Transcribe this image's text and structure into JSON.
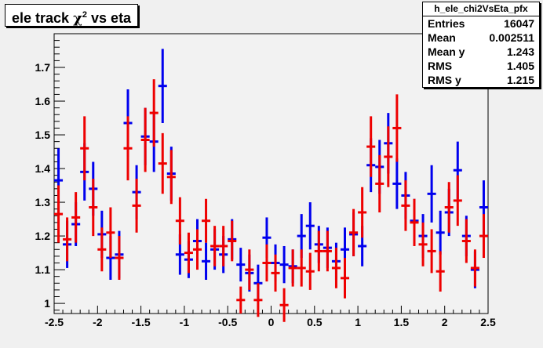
{
  "title": {
    "prefix": "ele track ",
    "chi": "χ",
    "sup": "2",
    "suffix": " vs eta"
  },
  "stats": {
    "name": "h_ele_chi2VsEta_pfx",
    "rows": [
      {
        "label": "Entries",
        "value": "16047"
      },
      {
        "label": "Mean",
        "value": "0.002511"
      },
      {
        "label": "Mean y",
        "value": "1.243"
      },
      {
        "label": "RMS",
        "value": "1.405"
      },
      {
        "label": "RMS y",
        "value": "1.215"
      }
    ]
  },
  "chart_data": {
    "type": "scatter",
    "xlim": [
      -2.5,
      2.5
    ],
    "ylim": [
      0.97,
      1.8
    ],
    "x_ticks": [
      "-2.5",
      "-2",
      "-1.5",
      "-1",
      "-0.5",
      "0",
      "0.5",
      "1",
      "1.5",
      "2",
      "2.5"
    ],
    "y_ticks": [
      "1",
      "1.1",
      "1.2",
      "1.3",
      "1.4",
      "1.5",
      "1.6",
      "1.7"
    ],
    "series": [
      {
        "color": "#0000ee",
        "points": [
          {
            "x": -2.45,
            "y": 1.365,
            "err": 0.095
          },
          {
            "x": -2.35,
            "y": 1.175,
            "err": 0.07
          },
          {
            "x": -2.25,
            "y": 1.235,
            "err": 0.065
          },
          {
            "x": -2.15,
            "y": 1.39,
            "err": 0.085
          },
          {
            "x": -2.05,
            "y": 1.34,
            "err": 0.08
          },
          {
            "x": -1.95,
            "y": 1.205,
            "err": 0.07
          },
          {
            "x": -1.85,
            "y": 1.135,
            "err": 0.065
          },
          {
            "x": -1.75,
            "y": 1.145,
            "err": 0.07
          },
          {
            "x": -1.65,
            "y": 1.535,
            "err": 0.1
          },
          {
            "x": -1.55,
            "y": 1.33,
            "err": 0.08
          },
          {
            "x": -1.45,
            "y": 1.495,
            "err": 0.085
          },
          {
            "x": -1.35,
            "y": 1.48,
            "err": 0.09
          },
          {
            "x": -1.25,
            "y": 1.645,
            "err": 0.11
          },
          {
            "x": -1.15,
            "y": 1.385,
            "err": 0.08
          },
          {
            "x": -1.05,
            "y": 1.145,
            "err": 0.06
          },
          {
            "x": -0.95,
            "y": 1.13,
            "err": 0.055
          },
          {
            "x": -0.85,
            "y": 1.185,
            "err": 0.065
          },
          {
            "x": -0.75,
            "y": 1.125,
            "err": 0.055
          },
          {
            "x": -0.65,
            "y": 1.16,
            "err": 0.06
          },
          {
            "x": -0.55,
            "y": 1.145,
            "err": 0.055
          },
          {
            "x": -0.45,
            "y": 1.19,
            "err": 0.06
          },
          {
            "x": -0.35,
            "y": 1.115,
            "err": 0.05
          },
          {
            "x": -0.25,
            "y": 1.09,
            "err": 0.055
          },
          {
            "x": -0.15,
            "y": 1.06,
            "err": 0.055
          },
          {
            "x": -0.05,
            "y": 1.195,
            "err": 0.06
          },
          {
            "x": 0.05,
            "y": 1.12,
            "err": 0.055
          },
          {
            "x": 0.15,
            "y": 1.115,
            "err": 0.055
          },
          {
            "x": 0.25,
            "y": 1.11,
            "err": 0.05
          },
          {
            "x": 0.35,
            "y": 1.2,
            "err": 0.065
          },
          {
            "x": 0.45,
            "y": 1.23,
            "err": 0.07
          },
          {
            "x": 0.55,
            "y": 1.175,
            "err": 0.055
          },
          {
            "x": 0.65,
            "y": 1.165,
            "err": 0.06
          },
          {
            "x": 0.75,
            "y": 1.125,
            "err": 0.055
          },
          {
            "x": 0.85,
            "y": 1.16,
            "err": 0.065
          },
          {
            "x": 0.95,
            "y": 1.205,
            "err": 0.065
          },
          {
            "x": 1.05,
            "y": 1.17,
            "err": 0.06
          },
          {
            "x": 1.15,
            "y": 1.41,
            "err": 0.08
          },
          {
            "x": 1.25,
            "y": 1.405,
            "err": 0.08
          },
          {
            "x": 1.35,
            "y": 1.475,
            "err": 0.09
          },
          {
            "x": 1.45,
            "y": 1.355,
            "err": 0.075
          },
          {
            "x": 1.55,
            "y": 1.32,
            "err": 0.07
          },
          {
            "x": 1.65,
            "y": 1.245,
            "err": 0.065
          },
          {
            "x": 1.75,
            "y": 1.2,
            "err": 0.065
          },
          {
            "x": 1.85,
            "y": 1.325,
            "err": 0.085
          },
          {
            "x": 1.95,
            "y": 1.21,
            "err": 0.065
          },
          {
            "x": 2.05,
            "y": 1.27,
            "err": 0.07
          },
          {
            "x": 2.15,
            "y": 1.395,
            "err": 0.085
          },
          {
            "x": 2.25,
            "y": 1.2,
            "err": 0.06
          },
          {
            "x": 2.35,
            "y": 1.1,
            "err": 0.055
          },
          {
            "x": 2.45,
            "y": 1.285,
            "err": 0.08
          }
        ]
      },
      {
        "color": "#ee0000",
        "points": [
          {
            "x": -2.45,
            "y": 1.265,
            "err": 0.085
          },
          {
            "x": -2.35,
            "y": 1.19,
            "err": 0.065
          },
          {
            "x": -2.25,
            "y": 1.255,
            "err": 0.075
          },
          {
            "x": -2.15,
            "y": 1.46,
            "err": 0.095
          },
          {
            "x": -2.05,
            "y": 1.285,
            "err": 0.085
          },
          {
            "x": -1.95,
            "y": 1.16,
            "err": 0.065
          },
          {
            "x": -1.85,
            "y": 1.21,
            "err": 0.075
          },
          {
            "x": -1.75,
            "y": 1.135,
            "err": 0.065
          },
          {
            "x": -1.65,
            "y": 1.46,
            "err": 0.095
          },
          {
            "x": -1.55,
            "y": 1.29,
            "err": 0.08
          },
          {
            "x": -1.45,
            "y": 1.485,
            "err": 0.095
          },
          {
            "x": -1.35,
            "y": 1.565,
            "err": 0.1
          },
          {
            "x": -1.25,
            "y": 1.415,
            "err": 0.09
          },
          {
            "x": -1.15,
            "y": 1.375,
            "err": 0.08
          },
          {
            "x": -1.05,
            "y": 1.245,
            "err": 0.07
          },
          {
            "x": -0.95,
            "y": 1.15,
            "err": 0.06
          },
          {
            "x": -0.85,
            "y": 1.16,
            "err": 0.06
          },
          {
            "x": -0.75,
            "y": 1.245,
            "err": 0.065
          },
          {
            "x": -0.65,
            "y": 1.17,
            "err": 0.06
          },
          {
            "x": -0.55,
            "y": 1.17,
            "err": 0.06
          },
          {
            "x": -0.45,
            "y": 1.185,
            "err": 0.06
          },
          {
            "x": -0.35,
            "y": 1.01,
            "err": 0.04
          },
          {
            "x": -0.25,
            "y": 1.1,
            "err": 0.06
          },
          {
            "x": -0.15,
            "y": 1.01,
            "err": 0.05
          },
          {
            "x": -0.05,
            "y": 1.12,
            "err": 0.055
          },
          {
            "x": 0.05,
            "y": 1.09,
            "err": 0.055
          },
          {
            "x": 0.15,
            "y": 0.995,
            "err": 0.05
          },
          {
            "x": 0.25,
            "y": 1.105,
            "err": 0.055
          },
          {
            "x": 0.35,
            "y": 1.105,
            "err": 0.055
          },
          {
            "x": 0.45,
            "y": 1.095,
            "err": 0.055
          },
          {
            "x": 0.55,
            "y": 1.155,
            "err": 0.06
          },
          {
            "x": 0.65,
            "y": 1.155,
            "err": 0.06
          },
          {
            "x": 0.75,
            "y": 1.105,
            "err": 0.06
          },
          {
            "x": 0.85,
            "y": 1.075,
            "err": 0.06
          },
          {
            "x": 0.95,
            "y": 1.21,
            "err": 0.07
          },
          {
            "x": 1.05,
            "y": 1.27,
            "err": 0.075
          },
          {
            "x": 1.15,
            "y": 1.465,
            "err": 0.09
          },
          {
            "x": 1.25,
            "y": 1.355,
            "err": 0.085
          },
          {
            "x": 1.35,
            "y": 1.435,
            "err": 0.09
          },
          {
            "x": 1.45,
            "y": 1.52,
            "err": 0.1
          },
          {
            "x": 1.55,
            "y": 1.29,
            "err": 0.075
          },
          {
            "x": 1.65,
            "y": 1.24,
            "err": 0.07
          },
          {
            "x": 1.75,
            "y": 1.175,
            "err": 0.065
          },
          {
            "x": 1.85,
            "y": 1.155,
            "err": 0.065
          },
          {
            "x": 1.95,
            "y": 1.095,
            "err": 0.06
          },
          {
            "x": 2.05,
            "y": 1.285,
            "err": 0.075
          },
          {
            "x": 2.15,
            "y": 1.305,
            "err": 0.075
          },
          {
            "x": 2.25,
            "y": 1.185,
            "err": 0.065
          },
          {
            "x": 2.35,
            "y": 1.105,
            "err": 0.055
          },
          {
            "x": 2.45,
            "y": 1.2,
            "err": 0.065
          }
        ]
      }
    ]
  }
}
